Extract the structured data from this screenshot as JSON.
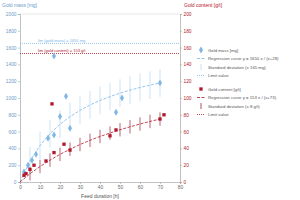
{
  "chart_data": {
    "type": "scatter",
    "xlabel": "Feed duration [h]",
    "ylabel": "Gold mass [mg]",
    "y2label": "Gold content [g/t]",
    "xlim": [
      0,
      80
    ],
    "xticks": [
      0,
      10,
      20,
      30,
      40,
      50,
      60,
      70,
      80
    ],
    "ylim": [
      0,
      2000
    ],
    "yticks": [
      0,
      200,
      400,
      600,
      800,
      1000,
      1200,
      1400,
      1600,
      1800,
      2000
    ],
    "y2lim": [
      0,
      200
    ],
    "y2ticks": [
      0,
      20,
      40,
      60,
      80,
      100,
      120,
      140,
      160,
      180,
      200
    ],
    "legend": "right",
    "series": [
      {
        "name": "Gold mass [mg]",
        "type": "scatter",
        "marker": "diamond",
        "color": "#7eb6e6",
        "x": [
          2,
          4,
          6,
          8,
          14,
          17,
          17,
          20,
          23,
          25,
          48,
          51,
          70
        ],
        "values": [
          120,
          200,
          260,
          330,
          520,
          1500,
          560,
          780,
          1020,
          640,
          830,
          1000,
          1180
        ]
      },
      {
        "name": "Regression curve y = 1650 x / (x+28)",
        "type": "line",
        "line_style": "dashed",
        "color": "#7eb6e6",
        "x": [
          0,
          5,
          10,
          15,
          20,
          25,
          30,
          35,
          40,
          45,
          50,
          55,
          60,
          65,
          70
        ],
        "values": [
          0,
          250,
          434,
          576,
          688,
          778,
          853,
          917,
          971,
          1017,
          1058,
          1093,
          1125,
          1153,
          1179
        ]
      },
      {
        "name": "Standard deviation (± 165 mg)",
        "type": "errorbar",
        "color": "#b9d6ef",
        "x": [
          5,
          10,
          15,
          20,
          25,
          30,
          35,
          40,
          45,
          50,
          55,
          60,
          65,
          70
        ],
        "values": [
          250,
          434,
          576,
          688,
          778,
          853,
          917,
          971,
          1017,
          1058,
          1093,
          1125,
          1153,
          1179
        ],
        "error": [
          165,
          165,
          165,
          165,
          165,
          165,
          165,
          165,
          165,
          165,
          165,
          165,
          165,
          165
        ]
      },
      {
        "name": "Limit value",
        "type": "hline",
        "line_style": "dotted",
        "color": "#7eb6e6",
        "values": [
          1650
        ],
        "annotation": "lim (gold mass) = 1650 mg"
      },
      {
        "name": "Gold content [g/t]",
        "type": "scatter",
        "marker": "square",
        "color": "#b2182b",
        "axis": "y2",
        "x": [
          2,
          3,
          5,
          7,
          13,
          16,
          17,
          22,
          25,
          45,
          48,
          70,
          72
        ],
        "values": [
          8,
          10,
          15,
          20,
          25,
          93,
          35,
          45,
          38,
          55,
          62,
          75,
          80
        ]
      },
      {
        "name": "Regression curve y = 153 x / (x+73)",
        "type": "line",
        "line_style": "dashed",
        "color": "#b2182b",
        "axis": "y2",
        "x": [
          0,
          5,
          10,
          15,
          20,
          25,
          30,
          35,
          40,
          45,
          50,
          55,
          60,
          65,
          70
        ],
        "values": [
          0,
          9.8,
          18.4,
          26.1,
          32.9,
          39,
          44.6,
          49.6,
          54.2,
          58.3,
          62.2,
          65.7,
          69,
          72.1,
          74.9
        ]
      },
      {
        "name": "Standard deviation (± 8 g/t)",
        "type": "errorbar",
        "color": "#9a2a36",
        "axis": "y2",
        "x": [
          5,
          10,
          15,
          20,
          25,
          30,
          35,
          40,
          45,
          50,
          55,
          60,
          65,
          70
        ],
        "values": [
          9.8,
          18.4,
          26.1,
          32.9,
          39,
          44.6,
          49.6,
          54.2,
          58.3,
          62.2,
          65.7,
          69,
          72.1,
          74.9
        ],
        "error": [
          8,
          8,
          8,
          8,
          8,
          8,
          8,
          8,
          8,
          8,
          8,
          8,
          8,
          8
        ]
      },
      {
        "name": "Limit value",
        "type": "hline",
        "line_style": "dotted",
        "color": "#b2182b",
        "axis": "y2",
        "values": [
          153
        ],
        "annotation": "lim (gold content) = 153 g/t"
      }
    ]
  }
}
